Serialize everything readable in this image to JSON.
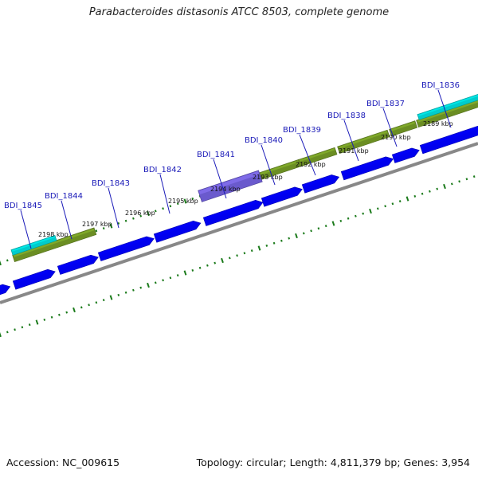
{
  "title": "Parabacteroides distasonis ATCC 8503, complete genome",
  "footer": {
    "accession": "Accession: NC_009615",
    "summary": "Topology: circular; Length: 4,811,379 bp; Genes: 3,954"
  },
  "colors": {
    "cds": "#0000ee",
    "feature_green": "#6b8e23",
    "feature_cyan": "#00cccc",
    "feature_purple": "#6a5acd",
    "backbone": "#888888",
    "ticks": "#1a7a1a",
    "gene_label": "#1a1ab8"
  },
  "gene_labels": [
    "BDI_1845",
    "BDI_1844",
    "BDI_1843",
    "BDI_1842",
    "BDI_1841",
    "BDI_1840",
    "BDI_1839",
    "BDI_1838",
    "BDI_1837",
    "BDI_1836"
  ],
  "scale_labels": [
    "2198 kbp",
    "2197 kbp",
    "2196 kbp",
    "2195 kbp",
    "2194 kbp",
    "2193 kbp",
    "2192 kbp",
    "2191 kbp",
    "2190 kbp",
    "2189 kbp"
  ]
}
